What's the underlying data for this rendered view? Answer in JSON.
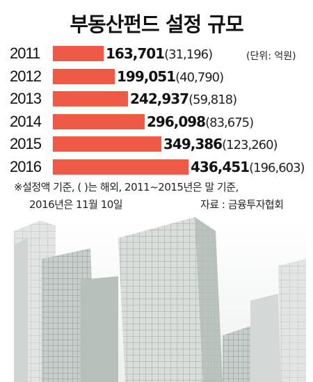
{
  "chart_data": {
    "type": "bar",
    "orientation": "horizontal",
    "title": "부동산펀드 설정 규모",
    "unit_label": "(단위: 억원)",
    "categories": [
      "2011",
      "2012",
      "2013",
      "2014",
      "2015",
      "2016"
    ],
    "values": [
      163701,
      199051,
      242937,
      296098,
      349386,
      436451
    ],
    "values_display": [
      "163,701",
      "199,051",
      "242,937",
      "296,098",
      "349,386",
      "436,451"
    ],
    "overseas_values": [
      31196,
      40790,
      59818,
      83675,
      123260,
      196603
    ],
    "overseas_display": [
      "(31,196)",
      "(40,790)",
      "(59,818)",
      "(83,675)",
      "(123,260)",
      "(196,603)"
    ],
    "bar_color": "#ee5a45"
  },
  "notes": {
    "line1": "※설정액 기준, ( )는 해외, 2011~2015년은 말 기준,",
    "line2": "2016년은 11월 10일",
    "source": "자료 : 금융투자협회"
  }
}
